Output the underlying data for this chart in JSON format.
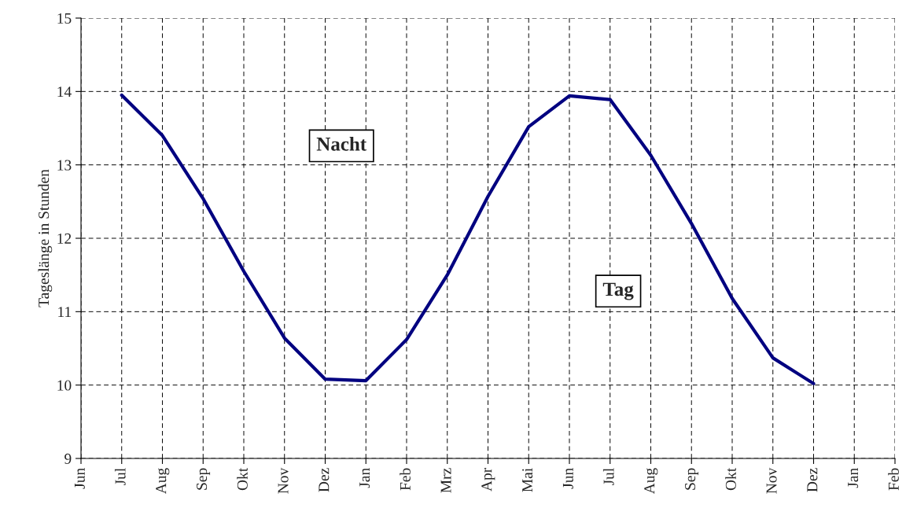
{
  "chart_data": {
    "type": "line",
    "ylabel": "Tageslänge in Stunden",
    "categories": [
      "Jun",
      "Jul",
      "Aug",
      "Sep",
      "Okt",
      "Nov",
      "Dez",
      "Jan",
      "Feb",
      "Mrz",
      "Apr",
      "Mai",
      "Jun",
      "Jul",
      "Aug",
      "Sep",
      "Okt",
      "Nov",
      "Dez",
      "Jan",
      "Feb"
    ],
    "series": [
      {
        "color": "#000080",
        "values": [
          null,
          13.95,
          13.4,
          12.54,
          11.55,
          10.64,
          10.08,
          10.06,
          10.62,
          11.5,
          12.57,
          13.52,
          13.94,
          13.89,
          13.13,
          12.2,
          11.18,
          10.37,
          10.02,
          null,
          null
        ]
      }
    ],
    "ylim": [
      9,
      15
    ],
    "yticks": [
      9,
      10,
      11,
      12,
      13,
      14,
      15
    ],
    "grid": true,
    "line_style": "solid",
    "marker": "none",
    "annotations": [
      "Nacht",
      "Tag"
    ]
  }
}
